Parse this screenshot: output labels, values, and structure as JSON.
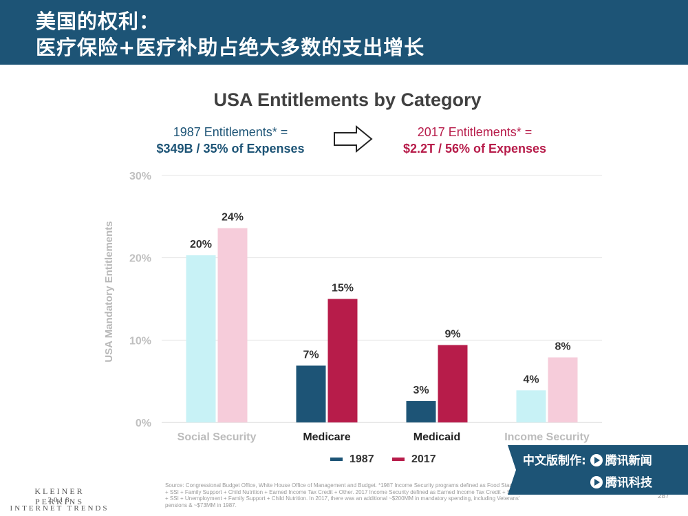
{
  "header": {
    "line1": "美国的权利：",
    "line2": "医疗保险+医疗补助占绝大多数的支出增长"
  },
  "chart_data": {
    "type": "bar",
    "title": "USA Entitlements by Category",
    "subtitle_left": {
      "line1": "1987 Entitlements* =",
      "line2": "$349B / 35% of Expenses"
    },
    "subtitle_right": {
      "line1": "2017 Entitlements* =",
      "line2": "$2.2T / 56% of Expenses"
    },
    "xlabel": "",
    "ylabel": "USA Mandatory Entitlements",
    "ylim": [
      0,
      30
    ],
    "yticks": [
      {
        "value": 0,
        "label": "0%"
      },
      {
        "value": 10,
        "label": "10%"
      },
      {
        "value": 20,
        "label": "20%"
      },
      {
        "value": 30,
        "label": "30%"
      }
    ],
    "categories": [
      "Social Security",
      "Medicare",
      "Medicaid",
      "Income Security"
    ],
    "category_emphasis": [
      false,
      true,
      true,
      false
    ],
    "series": [
      {
        "name": "1987",
        "color": "#1d5476",
        "faded_color": "#c8f2f6",
        "values": [
          20.3,
          6.9,
          2.6,
          3.9
        ],
        "labels": [
          "20%",
          "7%",
          "3%",
          "4%"
        ]
      },
      {
        "name": "2017",
        "color": "#b71c4a",
        "faded_color": "#f6ccda",
        "values": [
          23.6,
          15.0,
          9.4,
          7.9
        ],
        "labels": [
          "24%",
          "15%",
          "9%",
          "8%"
        ]
      }
    ],
    "grid": true,
    "legend_position": "bottom-center"
  },
  "footer": {
    "brand_line1": "KLEINER PERKINS",
    "brand_line2": "2018",
    "brand_line3": "INTERNET TRENDS",
    "source": "Source: Congressional Budget Office, White House Office of Management and Budget. *1987 Income Security programs defined as Food Stamps + SSI + Family Support + Child Nutrition + Earned Income Tax Credit + Other. 2017 Income Security defined as Earned Income Tax Credit + SNAP + SSI + Unemployment + Family Support + Child Nutrition. In 2017, there was an additional ~$200MM in mandatory spending, including Veterans' pensions & ~$73MM in 1987.",
    "page_number": "287"
  },
  "badge": {
    "line1_prefix": "中文版制作:",
    "line1_brand": "腾讯新闻",
    "line2_brand": "腾讯科技"
  }
}
